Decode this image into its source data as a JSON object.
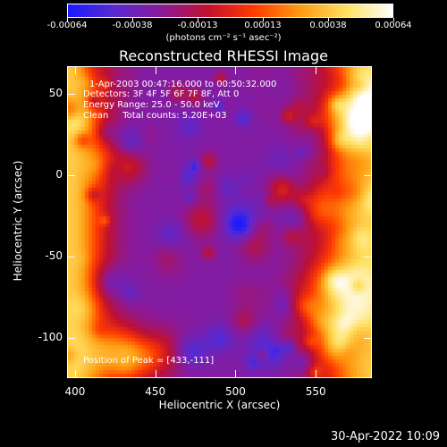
{
  "colorbar": {
    "colors": [
      "#1a1aff",
      "#5a2ad0",
      "#8a1a9a",
      "#c01030",
      "#ff3a00",
      "#ff9a10",
      "#ffe060",
      "#ffffff"
    ],
    "tick_labels": [
      "-0.00064",
      "-0.00038",
      "-0.00013",
      "0.00013",
      "0.00038",
      "0.00064"
    ],
    "units_label": "(photons cm⁻² s⁻¹ asec⁻²)"
  },
  "plot": {
    "title": "Reconstructed RHESSI Image",
    "time_range": "1-Apr-2003 00:47:16.000 to 00:50:32.000",
    "detectors": "Detectors: 3F 4F 5F 6F 7F 8F, Att 0",
    "energy": "Energy Range: 25.0 - 50.0 keV",
    "clean_line": "Clean     Total counts: 5.20E+03",
    "peak_line": "Position of Peak = [433,-111]",
    "xlabel": "Heliocentric X (arcsec)",
    "ylabel": "Heliocentric Y (arcsec)",
    "x_ticks": [
      "400",
      "450",
      "500",
      "550"
    ],
    "y_ticks": [
      "50",
      "0",
      "-50",
      "-100"
    ],
    "xlim": [
      395,
      585
    ],
    "ylim": [
      -125,
      67
    ]
  },
  "timestamp": "30-Apr-2022 10:09"
}
